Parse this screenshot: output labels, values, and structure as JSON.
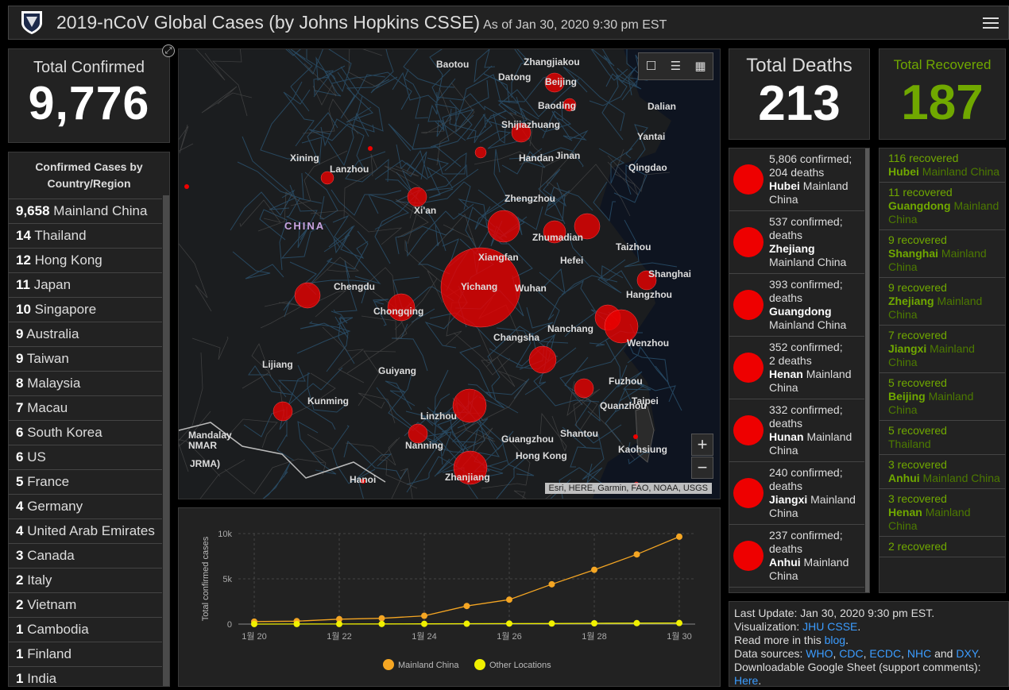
{
  "header": {
    "title": "2019-nCoV Global Cases (by Johns Hopkins CSSE)",
    "as_of": "As of Jan 30, 2020 9:30 pm EST",
    "menu_icon": "hamburger-icon",
    "logo": "jhu-shield-logo"
  },
  "confirmed": {
    "label": "Total Confirmed",
    "value": "9,776"
  },
  "countries": {
    "header": "Confirmed Cases by Country/Region",
    "items": [
      {
        "count": "9,658",
        "name": "Mainland China"
      },
      {
        "count": "14",
        "name": "Thailand"
      },
      {
        "count": "12",
        "name": "Hong Kong"
      },
      {
        "count": "11",
        "name": "Japan"
      },
      {
        "count": "10",
        "name": "Singapore"
      },
      {
        "count": "9",
        "name": "Australia"
      },
      {
        "count": "9",
        "name": "Taiwan"
      },
      {
        "count": "8",
        "name": "Malaysia"
      },
      {
        "count": "7",
        "name": "Macau"
      },
      {
        "count": "6",
        "name": "South Korea"
      },
      {
        "count": "6",
        "name": "US"
      },
      {
        "count": "5",
        "name": "France"
      },
      {
        "count": "4",
        "name": "Germany"
      },
      {
        "count": "4",
        "name": "United Arab Emirates"
      },
      {
        "count": "3",
        "name": "Canada"
      },
      {
        "count": "2",
        "name": "Italy"
      },
      {
        "count": "2",
        "name": "Vietnam"
      },
      {
        "count": "1",
        "name": "Cambodia"
      },
      {
        "count": "1",
        "name": "Finland"
      },
      {
        "count": "1",
        "name": "India"
      }
    ]
  },
  "map": {
    "country_label": "CHINA",
    "attribution": "Esri, HERE, Garmin, FAO, NOAA, USGS",
    "zoom_in": "+",
    "zoom_out": "−",
    "tools": [
      "bookmark-icon",
      "legend-icon",
      "basemap-gallery-icon"
    ],
    "cities": [
      "Baotou",
      "Zhangjiakou",
      "Datong",
      "Beijing",
      "Baoding",
      "Dalian",
      "Shijiazhuang",
      "Yantai",
      "Xining",
      "Lanzhou",
      "Handan",
      "Jinan",
      "Qingdao",
      "Zhengzhou",
      "Xi'an",
      "Zhumadian",
      "Xiangfan",
      "Taizhou",
      "Hefei",
      "Chengdu",
      "Yichang",
      "Wuhan",
      "Shanghai",
      "Hangzhou",
      "Chongqing",
      "Nanchang",
      "Changsha",
      "Wenzhou",
      "Lijiang",
      "Guiyang",
      "Fuzhou",
      "Kunming",
      "Taipei",
      "Linzhou",
      "Quanzhou",
      "Nanning",
      "Guangzhou",
      "Shantou",
      "Kaohsiung",
      "Hong Kong",
      "Zhanjiang",
      "Hanoi",
      "Mandalay",
      "NMAR",
      "JRMA)"
    ]
  },
  "chart_data": {
    "type": "line",
    "ylabel": "Total confirmed cases",
    "x": [
      "1월 20",
      "1월 21",
      "1월 22",
      "1월 23",
      "1월 24",
      "1월 25",
      "1월 26",
      "1월 27",
      "1월 28",
      "1월 29",
      "1월 30"
    ],
    "x_tick_labels": [
      "1월 20",
      "1월 22",
      "1월 24",
      "1월 26",
      "1월 28",
      "1월 30"
    ],
    "y_ticks": [
      "0",
      "5k",
      "10k"
    ],
    "ylim": [
      0,
      10000
    ],
    "grid": true,
    "legend_position": "bottom",
    "series": [
      {
        "name": "Mainland China",
        "color": "#f5a623",
        "values": [
          278,
          326,
          547,
          639,
          916,
          2000,
          2700,
          4400,
          6000,
          7700,
          9658
        ]
      },
      {
        "name": "Other Locations",
        "color": "#f0f000",
        "values": [
          4,
          6,
          8,
          14,
          25,
          40,
          57,
          64,
          87,
          105,
          118
        ]
      }
    ]
  },
  "deaths": {
    "label": "Total Deaths",
    "value": "213",
    "items": [
      {
        "line1": "5,806 confirmed;",
        "line2": "204 deaths",
        "region": "Hubei",
        "rest": "Mainland China"
      },
      {
        "line1": "537 confirmed;",
        "line2": "deaths",
        "region": "Zhejiang",
        "rest": "Mainland China"
      },
      {
        "line1": "393 confirmed;",
        "line2": "deaths",
        "region": "Guangdong",
        "rest": "Mainland China"
      },
      {
        "line1": "352 confirmed;",
        "line2": "2 deaths",
        "region": "Henan",
        "rest": "Mainland China"
      },
      {
        "line1": "332 confirmed;",
        "line2": "deaths",
        "region": "Hunan",
        "rest": "Mainland China"
      },
      {
        "line1": "240 confirmed;",
        "line2": "deaths",
        "region": "Jiangxi",
        "rest": "Mainland China"
      },
      {
        "line1": "237 confirmed;",
        "line2": "deaths",
        "region": "Anhui",
        "rest": "Mainland China"
      }
    ]
  },
  "recovered": {
    "label": "Total Recovered",
    "value": "187",
    "items": [
      {
        "line1": "116 recovered",
        "region": "Hubei",
        "rest": "Mainland China"
      },
      {
        "line1": "11 recovered",
        "region": "Guangdong",
        "rest": "Mainland China"
      },
      {
        "line1": "9 recovered",
        "region": "Shanghai",
        "rest": "Mainland China"
      },
      {
        "line1": "9 recovered",
        "region": "Zhejiang",
        "rest": "Mainland China"
      },
      {
        "line1": "7 recovered",
        "region": "Jiangxi",
        "rest": "Mainland China"
      },
      {
        "line1": "5 recovered",
        "region": "Beijing",
        "rest": "Mainland China"
      },
      {
        "line1": "5 recovered",
        "region": "",
        "rest": "Thailand"
      },
      {
        "line1": "3 recovered",
        "region": "Anhui",
        "rest": "Mainland China"
      },
      {
        "line1": "3 recovered",
        "region": "Henan",
        "rest": "Mainland China"
      },
      {
        "line1": "2 recovered",
        "region": "",
        "rest": ""
      }
    ]
  },
  "info": {
    "last_update": "Last Update: Jan 30, 2020 9:30 pm EST.",
    "viz_label": "Visualization:",
    "viz_link": "JHU CSSE",
    "read_more": "Read more in this",
    "blog_link": "blog",
    "sources_label": "Data sources:",
    "sources": [
      "WHO",
      "CDC",
      "ECDC",
      "NHC"
    ],
    "and": "and",
    "last_source": "DXY",
    "sheet_text": "Downloadable Google Sheet (support comments):",
    "here_link": "Here"
  },
  "colors": {
    "accent_red": "#e00000",
    "recovered_green": "#70a800",
    "link_blue": "#3b9cff"
  }
}
